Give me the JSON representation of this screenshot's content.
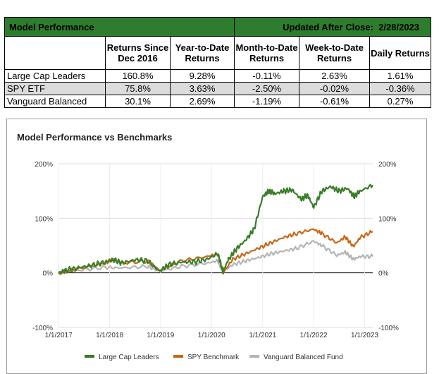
{
  "table": {
    "title": "Model Performance",
    "updated_label": "Updated After Close:",
    "updated_date": "2/28/2023",
    "columns": [
      "Returns Since Dec 2016",
      "Year-to-Date Returns",
      "Month-to-Date Returns",
      "Week-to-Date Returns",
      "Daily Returns"
    ],
    "rows": [
      {
        "name": "Large Cap Leaders",
        "values": [
          "160.8%",
          "9.28%",
          "-0.11%",
          "2.63%",
          "1.61%"
        ]
      },
      {
        "name": "SPY ETF",
        "values": [
          "75.8%",
          "3.63%",
          "-2.50%",
          "-0.02%",
          "-0.36%"
        ]
      },
      {
        "name": "Vanguard Balanced",
        "values": [
          "30.1%",
          "2.69%",
          "-1.19%",
          "-0.61%",
          "0.27%"
        ]
      }
    ]
  },
  "colors": {
    "header_green": "#2e7d2e",
    "large_cap": "#3a7d2a",
    "spy": "#c56a1b",
    "vanguard": "#b5b5b5"
  },
  "chart_data": {
    "type": "line",
    "title": "Model Performance vs Benchmarks",
    "xlabel": "",
    "ylabel": "",
    "x_ticks": [
      "1/1/2017",
      "1/1/2018",
      "1/1/2019",
      "1/1/2020",
      "1/1/2021",
      "1/1/2022",
      "1/1/2023"
    ],
    "y_ticks": [
      "200%",
      "100%",
      "0%",
      "-100%"
    ],
    "ylim": [
      -100,
      200
    ],
    "xlim": [
      "2016-12-31",
      "2023-02-28"
    ],
    "legend": "bottom",
    "series": [
      {
        "name": "Large Cap Leaders",
        "x": [
          "2016-12-31",
          "2017-03-01",
          "2017-06-01",
          "2017-09-01",
          "2017-12-01",
          "2018-01-25",
          "2018-04-01",
          "2018-07-01",
          "2018-10-01",
          "2018-12-24",
          "2019-03-01",
          "2019-06-01",
          "2019-09-01",
          "2019-12-01",
          "2020-02-15",
          "2020-03-23",
          "2020-05-01",
          "2020-07-01",
          "2020-09-01",
          "2020-11-01",
          "2021-01-01",
          "2021-02-15",
          "2021-04-01",
          "2021-06-01",
          "2021-08-01",
          "2021-10-01",
          "2021-11-20",
          "2022-01-01",
          "2022-03-01",
          "2022-05-01",
          "2022-07-01",
          "2022-09-01",
          "2022-10-15",
          "2022-12-01",
          "2023-02-28"
        ],
        "y": [
          0,
          5,
          10,
          14,
          20,
          24,
          18,
          24,
          22,
          3,
          15,
          20,
          20,
          25,
          35,
          2,
          25,
          45,
          60,
          80,
          140,
          150,
          145,
          150,
          152,
          135,
          142,
          120,
          150,
          158,
          150,
          155,
          140,
          150,
          160.8
        ]
      },
      {
        "name": "SPY Benchmark",
        "x": [
          "2016-12-31",
          "2017-06-01",
          "2017-12-01",
          "2018-01-25",
          "2018-04-01",
          "2018-10-01",
          "2018-12-24",
          "2019-06-01",
          "2019-12-01",
          "2020-02-15",
          "2020-03-23",
          "2020-06-01",
          "2020-09-01",
          "2020-12-01",
          "2021-03-01",
          "2021-06-01",
          "2021-09-01",
          "2021-12-31",
          "2022-03-01",
          "2022-06-15",
          "2022-08-15",
          "2022-10-12",
          "2022-12-01",
          "2023-02-28"
        ],
        "y": [
          0,
          8,
          18,
          25,
          18,
          22,
          5,
          22,
          30,
          35,
          0,
          25,
          35,
          45,
          55,
          65,
          72,
          80,
          72,
          55,
          66,
          48,
          65,
          75.8
        ]
      },
      {
        "name": "Vanguard Balanced Fund",
        "x": [
          "2016-12-31",
          "2017-06-01",
          "2017-12-01",
          "2018-04-01",
          "2018-10-01",
          "2018-12-24",
          "2019-06-01",
          "2019-12-01",
          "2020-02-15",
          "2020-03-23",
          "2020-06-01",
          "2020-09-01",
          "2020-12-01",
          "2021-03-01",
          "2021-06-01",
          "2021-09-01",
          "2021-12-31",
          "2022-03-01",
          "2022-06-15",
          "2022-08-15",
          "2022-10-12",
          "2022-12-01",
          "2023-02-28"
        ],
        "y": [
          0,
          5,
          10,
          9,
          12,
          3,
          12,
          18,
          22,
          2,
          15,
          22,
          28,
          35,
          40,
          45,
          58,
          50,
          32,
          38,
          25,
          30,
          30.1
        ]
      }
    ]
  }
}
